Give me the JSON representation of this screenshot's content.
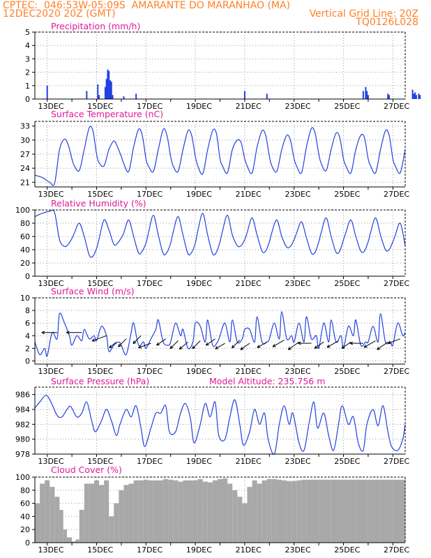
{
  "header": {
    "line1_left": "CPTEC:  046:53W-05:09S  AMARANTE DO MARANHAO (MA)",
    "line2_left": "12DEC2020 20Z (GMT)",
    "line2_right": "Vertical Grid Line: 20Z",
    "line3_right": "TQ0126L028"
  },
  "x_axis": {
    "ticks": [
      "13DEC",
      "15DEC",
      "17DEC",
      "19DEC",
      "21DEC",
      "23DEC",
      "25DEC",
      "27DEC"
    ]
  },
  "colors": {
    "series": "#2040e0",
    "grid": "#999999",
    "title": "#e0189a",
    "header": "#ff7f27",
    "cloud": "#a8a8a8"
  },
  "chart_data": [
    {
      "type": "bar",
      "title": "Precipitation (mm/h)",
      "ylim": [
        0,
        5
      ],
      "yticks": [
        0,
        1,
        2,
        3,
        4,
        5
      ],
      "x_unit": "days since 12DEC2020 20Z",
      "x": [
        0.5,
        2.1,
        2.55,
        2.6,
        2.85,
        2.9,
        2.95,
        3.0,
        3.05,
        3.1,
        3.15,
        3.6,
        4.1,
        8.5,
        9.4,
        13.3,
        13.4,
        13.45,
        13.5,
        14.3,
        14.35,
        15.3,
        15.35,
        15.4,
        15.45,
        15.55,
        15.6,
        16.3
      ],
      "values": [
        1.0,
        0.6,
        1.1,
        0.3,
        0.9,
        1.5,
        2.2,
        2.1,
        1.4,
        1.3,
        0.3,
        0.2,
        0.4,
        0.6,
        0.4,
        0.6,
        0.9,
        0.6,
        0.3,
        0.4,
        0.3,
        0.7,
        0.4,
        0.5,
        0.3,
        0.4,
        0.3,
        0.4
      ]
    },
    {
      "type": "line",
      "title": "Surface Temperature (nC)",
      "ylim": [
        20,
        34
      ],
      "yticks": [
        21,
        24,
        27,
        30,
        33
      ],
      "x_unit": "days since 12DEC2020 20Z",
      "series": [
        {
          "x": [
            0,
            0.3,
            0.6,
            0.8,
            1.0,
            1.2,
            1.35,
            1.5,
            1.6,
            1.8,
            2.0,
            2.2,
            2.35,
            2.5,
            2.6,
            2.8,
            3.0,
            3.2,
            3.35,
            3.5,
            3.6,
            3.8,
            4.0,
            4.2,
            4.35,
            4.5,
            4.6,
            4.8,
            5.0,
            5.2,
            5.35,
            5.5,
            5.6,
            5.8,
            6.0,
            6.2,
            6.35,
            6.5,
            6.6,
            6.8,
            7.0,
            7.2,
            7.35,
            7.5,
            7.6,
            7.8,
            8.0,
            8.2,
            8.35,
            8.5,
            8.6,
            8.8,
            9.0,
            9.2,
            9.35,
            9.5,
            9.6,
            9.8,
            10.0,
            10.2,
            10.35,
            10.5,
            10.6,
            10.8,
            11.0,
            11.2,
            11.35,
            11.5,
            11.6,
            11.8,
            12.0,
            12.2,
            12.35,
            12.5,
            12.6,
            12.8,
            13.0,
            13.2,
            13.35,
            13.5,
            13.6,
            13.8,
            14.0,
            14.2,
            14.35,
            14.5,
            14.6,
            14.8,
            15.0
          ],
          "values": [
            22.5,
            22.0,
            21.0,
            20.8,
            28.0,
            30.2,
            29.0,
            26.0,
            24.5,
            23.5,
            28.0,
            32.6,
            32.0,
            27.0,
            25.2,
            24.5,
            28.0,
            29.8,
            28.5,
            26.5,
            25.0,
            23.3,
            28.5,
            32.3,
            31.0,
            26.0,
            24.5,
            23.3,
            28.0,
            32.3,
            31.0,
            26.5,
            24.5,
            23.3,
            28.0,
            32.0,
            31.0,
            26.5,
            24.5,
            22.8,
            28.0,
            32.0,
            31.5,
            26.0,
            24.5,
            23.0,
            28.0,
            30.0,
            29.5,
            26.0,
            24.5,
            23.0,
            28.5,
            32.0,
            31.0,
            26.5,
            24.5,
            23.3,
            28.0,
            31.0,
            30.0,
            26.0,
            24.5,
            23.0,
            28.5,
            32.5,
            31.5,
            27.0,
            25.0,
            23.5,
            28.0,
            31.5,
            30.5,
            26.0,
            24.5,
            23.0,
            28.0,
            31.0,
            30.5,
            26.0,
            24.5,
            23.0,
            28.0,
            32.0,
            31.0,
            26.0,
            24.5,
            23.0,
            28.0
          ]
        }
      ]
    },
    {
      "type": "line",
      "title": "Relative Humidity (%)",
      "ylim": [
        0,
        100
      ],
      "yticks": [
        0,
        20,
        40,
        60,
        80,
        100
      ],
      "x_unit": "days since 12DEC2020 20Z",
      "series": [
        {
          "x": [
            0,
            0.3,
            0.6,
            0.8,
            1.0,
            1.2,
            1.35,
            1.5,
            1.6,
            1.8,
            2.0,
            2.2,
            2.35,
            2.5,
            2.6,
            2.8,
            3.0,
            3.2,
            3.35,
            3.5,
            3.6,
            3.8,
            4.0,
            4.2,
            4.35,
            4.5,
            4.6,
            4.8,
            5.0,
            5.2,
            5.35,
            5.5,
            5.6,
            5.8,
            6.0,
            6.2,
            6.35,
            6.5,
            6.6,
            6.8,
            7.0,
            7.2,
            7.35,
            7.5,
            7.6,
            7.8,
            8.0,
            8.2,
            8.35,
            8.5,
            8.6,
            8.8,
            9.0,
            9.2,
            9.35,
            9.5,
            9.6,
            9.8,
            10.0,
            10.2,
            10.35,
            10.5,
            10.6,
            10.8,
            11.0,
            11.2,
            11.35,
            11.5,
            11.6,
            11.8,
            12.0,
            12.2,
            12.35,
            12.5,
            12.6,
            12.8,
            13.0,
            13.2,
            13.35,
            13.5,
            13.6,
            13.8,
            14.0,
            14.2,
            14.35,
            14.5,
            14.6,
            14.8,
            15.0
          ],
          "values": [
            90,
            95,
            98,
            96,
            55,
            45,
            48,
            57,
            65,
            80,
            60,
            32,
            30,
            42,
            56,
            85,
            70,
            48,
            50,
            58,
            65,
            85,
            60,
            35,
            38,
            50,
            65,
            92,
            62,
            34,
            36,
            50,
            66,
            90,
            62,
            34,
            36,
            50,
            68,
            95,
            62,
            34,
            36,
            52,
            68,
            92,
            62,
            46,
            46,
            55,
            66,
            88,
            62,
            38,
            38,
            52,
            66,
            85,
            60,
            44,
            45,
            55,
            65,
            82,
            58,
            35,
            36,
            52,
            66,
            88,
            60,
            36,
            38,
            55,
            66,
            85,
            60,
            38,
            38,
            52,
            66,
            88,
            62,
            40,
            40,
            52,
            62,
            80,
            46
          ]
        }
      ]
    },
    {
      "type": "line",
      "title": "Surface Wind (m/s)",
      "ylim": [
        -0.5,
        10
      ],
      "yticks": [
        0,
        2,
        4,
        6,
        8,
        10
      ],
      "x_unit": "days since 12DEC2020 20Z",
      "series": [
        {
          "x": [
            0,
            0.2,
            0.4,
            0.5,
            0.7,
            0.9,
            1.0,
            1.2,
            1.4,
            1.5,
            1.7,
            1.9,
            2.0,
            2.2,
            2.4,
            2.5,
            2.7,
            2.9,
            3.0,
            3.2,
            3.4,
            3.5,
            3.7,
            3.9,
            4.0,
            4.2,
            4.4,
            4.5,
            4.7,
            4.9,
            5.0,
            5.2,
            5.4,
            5.5,
            5.7,
            5.9,
            6.0,
            6.2,
            6.4,
            6.5,
            6.7,
            6.9,
            7.0,
            7.2,
            7.4,
            7.5,
            7.7,
            7.9,
            8.0,
            8.2,
            8.4,
            8.5,
            8.7,
            8.9,
            9.0,
            9.2,
            9.4,
            9.5,
            9.7,
            9.9,
            10.0,
            10.2,
            10.4,
            10.5,
            10.7,
            10.9,
            11.0,
            11.2,
            11.4,
            11.5,
            11.7,
            11.9,
            12.0,
            12.2,
            12.4,
            12.5,
            12.7,
            12.9,
            13.0,
            13.2,
            13.4,
            13.5,
            13.7,
            13.9,
            14.0,
            14.2,
            14.4,
            14.5,
            14.7,
            14.9,
            15.0
          ],
          "values": [
            3.0,
            1.0,
            2.0,
            0.8,
            4.5,
            3.5,
            7.5,
            6.0,
            4.0,
            2.5,
            4.0,
            3.2,
            5.0,
            3.5,
            4.0,
            3.2,
            5.5,
            4.0,
            1.5,
            2.5,
            3.0,
            2.5,
            1.0,
            4.5,
            6.0,
            2.5,
            3.0,
            2.0,
            3.5,
            5.0,
            6.5,
            3.0,
            2.5,
            3.0,
            6.0,
            4.0,
            5.0,
            2.0,
            3.0,
            6.0,
            5.5,
            3.0,
            6.5,
            2.5,
            3.0,
            4.0,
            6.0,
            3.0,
            6.5,
            3.0,
            3.5,
            5.0,
            5.0,
            3.0,
            7.0,
            3.0,
            3.0,
            3.5,
            6.0,
            3.5,
            7.8,
            3.5,
            4.0,
            3.0,
            6.0,
            3.0,
            7.0,
            3.5,
            4.0,
            2.0,
            6.0,
            3.0,
            6.5,
            3.0,
            4.0,
            2.0,
            5.5,
            4.0,
            6.5,
            2.5,
            3.0,
            3.0,
            5.5,
            3.0,
            7.5,
            3.0,
            3.0,
            2.5,
            6.0,
            4.0,
            4.5
          ]
        }
      ],
      "wind_vectors": {
        "x": [
          0.9,
          1.9,
          2.9,
          3.3,
          3.7,
          4.3,
          4.7,
          5.3,
          5.8,
          6.2,
          6.7,
          7.3,
          7.7,
          8.3,
          8.7,
          9.4,
          10.1,
          10.7,
          11.2,
          11.7,
          12.3,
          12.8,
          13.3,
          13.8,
          14.3,
          14.8
        ],
        "y": [
          4.5,
          4.5,
          4.0,
          3.0,
          3.5,
          4.0,
          2.8,
          3.5,
          3.2,
          3.0,
          3.2,
          3.5,
          2.8,
          3.3,
          2.8,
          3.0,
          3.3,
          3.0,
          2.8,
          3.0,
          3.2,
          3.0,
          2.8,
          3.2,
          3.0,
          3.5
        ],
        "speed": [
          5,
          5,
          5,
          2,
          3,
          3,
          4,
          3,
          3,
          3,
          3,
          3,
          3,
          3,
          3,
          3,
          4,
          4,
          4,
          3,
          4,
          3,
          4,
          4,
          4,
          4
        ],
        "dir_deg": [
          180,
          180,
          200,
          220,
          225,
          225,
          200,
          215,
          225,
          220,
          225,
          215,
          210,
          225,
          215,
          210,
          210,
          215,
          180,
          215,
          210,
          215,
          180,
          210,
          215,
          200
        ]
      }
    },
    {
      "type": "line",
      "title": "Surface Pressure (hPa)",
      "annotation": "Model Altitude: 235.756 m",
      "ylim": [
        978,
        987
      ],
      "yticks": [
        978,
        980,
        982,
        984,
        986
      ],
      "x_unit": "days since 12DEC2020 20Z",
      "series": [
        {
          "x": [
            0,
            0.2,
            0.45,
            0.65,
            0.9,
            1.1,
            1.3,
            1.45,
            1.7,
            1.9,
            2.1,
            2.3,
            2.45,
            2.7,
            2.9,
            3.1,
            3.3,
            3.45,
            3.7,
            3.9,
            4.1,
            4.3,
            4.45,
            4.7,
            4.9,
            5.1,
            5.3,
            5.45,
            5.7,
            5.9,
            6.1,
            6.3,
            6.45,
            6.7,
            6.9,
            7.1,
            7.3,
            7.45,
            7.7,
            7.9,
            8.1,
            8.3,
            8.45,
            8.7,
            8.9,
            9.1,
            9.3,
            9.45,
            9.7,
            9.9,
            10.1,
            10.3,
            10.45,
            10.7,
            10.9,
            11.1,
            11.3,
            11.45,
            11.7,
            11.9,
            12.1,
            12.3,
            12.45,
            12.7,
            12.9,
            13.1,
            13.3,
            13.45,
            13.7,
            13.9,
            14.1,
            14.3,
            14.45,
            14.7,
            14.9,
            15.0
          ],
          "values": [
            984.2,
            985.0,
            985.9,
            985.0,
            983.2,
            983.0,
            984.0,
            984.4,
            983.0,
            983.5,
            985.0,
            982.5,
            981.0,
            982.5,
            984.0,
            982.5,
            980.5,
            982.0,
            984.0,
            983.0,
            984.5,
            981.5,
            979.0,
            981.5,
            983.5,
            983.5,
            984.5,
            981.0,
            981.0,
            983.5,
            984.8,
            982.8,
            979.5,
            982.0,
            984.8,
            983.0,
            985.0,
            980.5,
            980.0,
            983.0,
            985.3,
            982.0,
            979.2,
            981.0,
            984.0,
            982.0,
            983.5,
            980.0,
            978.0,
            982.0,
            984.5,
            982.0,
            983.5,
            979.5,
            978.5,
            982.0,
            985.0,
            981.5,
            983.5,
            980.5,
            978.5,
            982.0,
            984.5,
            982.0,
            983.0,
            979.5,
            978.5,
            982.0,
            984.0,
            981.8,
            984.5,
            981.0,
            979.0,
            978.5,
            980.0,
            982.0
          ]
        }
      ]
    },
    {
      "type": "area",
      "title": "Cloud Cover (%)",
      "ylim": [
        0,
        100
      ],
      "yticks": [
        0,
        20,
        40,
        60,
        80,
        100
      ],
      "x_unit": "days since 12DEC2020 20Z",
      "series": [
        {
          "x": [
            0,
            0.2,
            0.4,
            0.6,
            0.8,
            1.0,
            1.15,
            1.3,
            1.5,
            1.65,
            1.8,
            2.0,
            2.2,
            2.4,
            2.6,
            2.8,
            3.0,
            3.2,
            3.4,
            3.6,
            3.8,
            4.0,
            4.2,
            4.4,
            4.6,
            4.8,
            5.0,
            5.2,
            5.4,
            5.6,
            5.8,
            6.0,
            6.2,
            6.4,
            6.6,
            6.8,
            7.0,
            7.2,
            7.4,
            7.6,
            7.8,
            8.0,
            8.2,
            8.4,
            8.6,
            8.8,
            9.0,
            9.2,
            9.4,
            9.6,
            9.8,
            10.0,
            10.2,
            10.4,
            10.6,
            10.8,
            11.0,
            11.5,
            12.0,
            12.5,
            13.0,
            13.5,
            14.0,
            14.5,
            15.0
          ],
          "values": [
            60,
            90,
            95,
            85,
            70,
            50,
            20,
            8,
            2,
            5,
            50,
            90,
            90,
            95,
            88,
            95,
            40,
            60,
            80,
            88,
            90,
            95,
            95,
            96,
            95,
            95,
            95,
            97,
            96,
            95,
            93,
            95,
            95,
            95,
            97,
            93,
            92,
            95,
            97,
            98,
            90,
            80,
            70,
            60,
            85,
            95,
            90,
            95,
            97,
            97,
            96,
            95,
            94,
            94,
            95,
            96,
            96,
            96,
            96,
            96,
            96,
            96,
            96,
            96,
            97
          ]
        }
      ]
    }
  ]
}
